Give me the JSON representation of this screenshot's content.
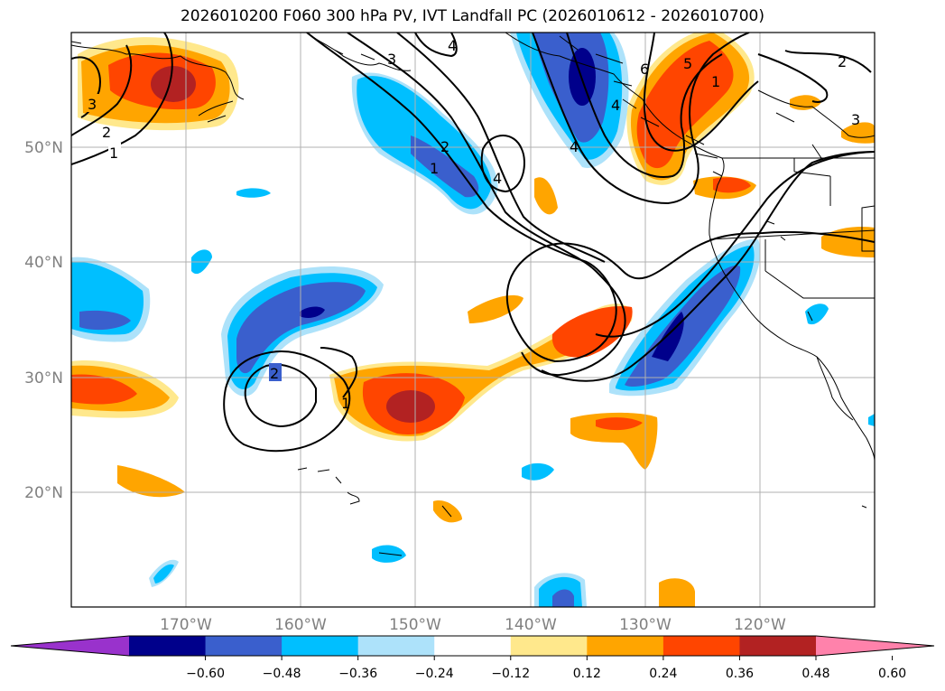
{
  "title": "2026010200 F060 300 hPa PV, IVT Landfall PC (2026010612 - 2026010700)",
  "map": {
    "extent": {
      "lon_min": -180,
      "lon_max": -110,
      "lat_min": 10,
      "lat_max": 60
    },
    "lon_ticks": [
      {
        "lon": -170,
        "label": "170°W"
      },
      {
        "lon": -160,
        "label": "160°W"
      },
      {
        "lon": -150,
        "label": "150°W"
      },
      {
        "lon": -140,
        "label": "140°W"
      },
      {
        "lon": -130,
        "label": "130°W"
      },
      {
        "lon": -120,
        "label": "120°W"
      }
    ],
    "lat_ticks": [
      {
        "lat": 20,
        "label": "20°N"
      },
      {
        "lat": 30,
        "label": "30°N"
      },
      {
        "lat": 40,
        "label": "40°N"
      },
      {
        "lat": 50,
        "label": "50°N"
      }
    ],
    "contour_labels": [
      "1",
      "2",
      "3",
      "4",
      "5",
      "6"
    ]
  },
  "colorbar": {
    "colors": [
      "#9932CC",
      "#00008B",
      "#3A5FCD",
      "#00BFFF",
      "#ADE2FA",
      "#FFFFFF",
      "#FFE88C",
      "#FFA500",
      "#FF4500",
      "#B22222",
      "#FF82AB"
    ],
    "ticks": [
      "−0.60",
      "−0.48",
      "−0.36",
      "−0.24",
      "−0.12",
      "0.12",
      "0.24",
      "0.36",
      "0.48",
      "0.60"
    ]
  },
  "colors": {
    "gridline": "#b0b0b0",
    "contour": "#000000",
    "coast": "#000000"
  }
}
